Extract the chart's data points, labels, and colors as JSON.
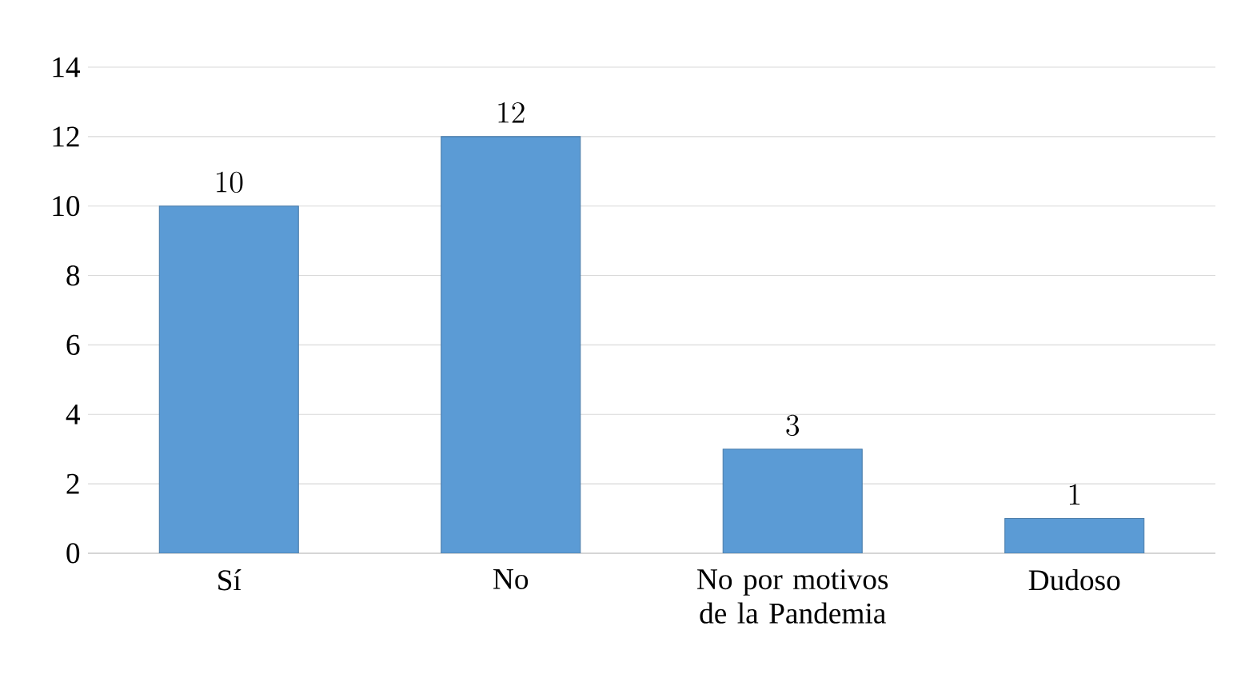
{
  "chart_data": {
    "type": "bar",
    "categories": [
      "Sí",
      "No",
      "No por motivos de la Pandemia",
      "Dudoso"
    ],
    "values": [
      10,
      12,
      3,
      1
    ],
    "color": "#5b9bd5",
    "ylim": [
      0,
      14
    ],
    "yticks": [
      0,
      2,
      4,
      6,
      8,
      10,
      12,
      14
    ],
    "grid": "y",
    "data_labels": true
  }
}
